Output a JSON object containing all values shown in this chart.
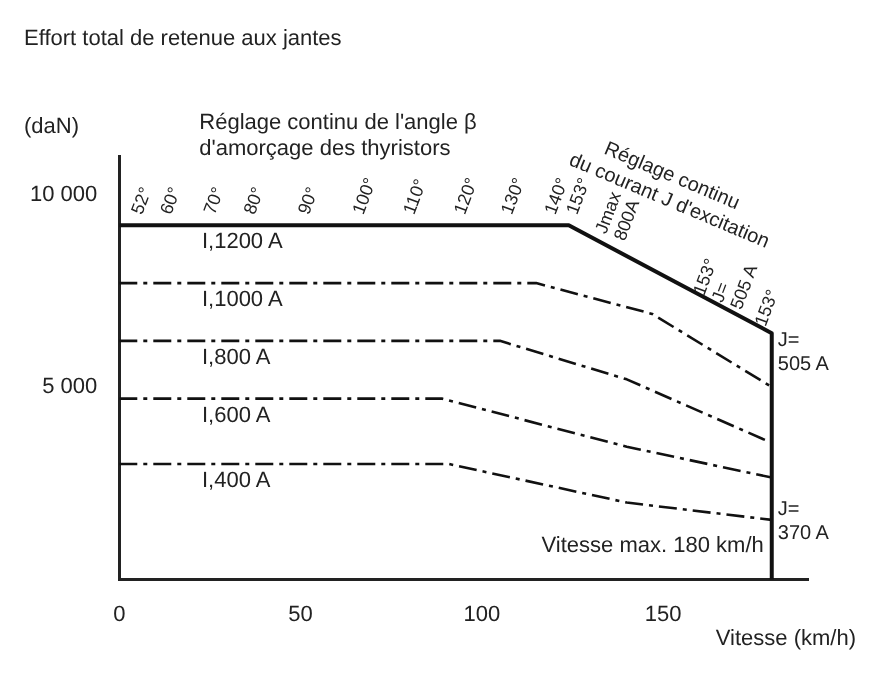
{
  "chart_data": {
    "type": "line",
    "title": "Effort total de retenue aux jantes",
    "ylabel": "(daN)",
    "xlabel": "Vitesse (km/h)",
    "xlim": [
      0,
      190
    ],
    "xticks": [
      0,
      50,
      100,
      150
    ],
    "ylim": [
      0,
      11000
    ],
    "yticks": [
      {
        "value": 5000,
        "label": "5 000"
      },
      {
        "value": 10000,
        "label": "10 000"
      }
    ],
    "grid": false,
    "legend": false,
    "marker": "none",
    "series": [
      {
        "name": "I,1200 A",
        "color": "#111111",
        "line_style": "solid",
        "x": [
          0,
          124,
          152,
          180,
          180
        ],
        "values": [
          9200,
          9200,
          7800,
          6400,
          0
        ]
      },
      {
        "name": "I,1000 A",
        "color": "#111111",
        "line_style": "dashed",
        "x": [
          0,
          115,
          147,
          180
        ],
        "values": [
          7700,
          7700,
          6900,
          5000
        ]
      },
      {
        "name": "I,800 A",
        "color": "#111111",
        "line_style": "dashed",
        "x": [
          0,
          105,
          140,
          180
        ],
        "values": [
          6200,
          6200,
          5200,
          3550
        ]
      },
      {
        "name": "I,600 A",
        "color": "#111111",
        "line_style": "dashed",
        "x": [
          0,
          89,
          140,
          180
        ],
        "values": [
          4700,
          4700,
          3450,
          2650
        ]
      },
      {
        "name": "I,400 A",
        "color": "#111111",
        "line_style": "dashed",
        "x": [
          0,
          91,
          140,
          180
        ],
        "values": [
          3000,
          3000,
          2000,
          1550
        ]
      }
    ],
    "annotations": [
      "Réglage continu de l'angle β d'amorçage des thyristors",
      "Réglage continu du courant J d'excitation",
      "52°",
      "60°",
      "70°",
      "80°",
      "90°",
      "100°",
      "110°",
      "120°",
      "130°",
      "140°",
      "153°",
      "Jmax 800A",
      "153° J= 505 A",
      "153°",
      "Vitesse max. 180 km/h",
      "J= 505 A",
      "J= 370 A"
    ]
  }
}
